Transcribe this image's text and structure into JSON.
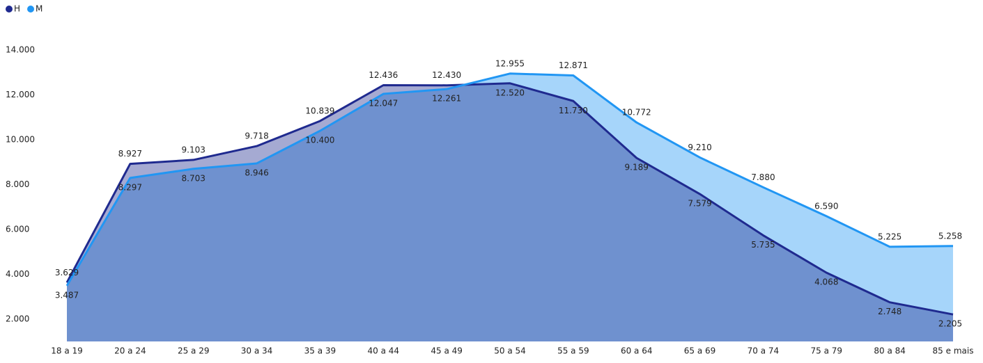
{
  "chart_data": {
    "type": "area",
    "categories": [
      "18 a 19",
      "20 a 24",
      "25 a 29",
      "30 a 34",
      "35 a 39",
      "40 a 44",
      "45 a 49",
      "50 a 54",
      "55 a 59",
      "60 a 64",
      "65 a 69",
      "70 a 74",
      "75 a 79",
      "80 a 84",
      "85 e mais"
    ],
    "series": [
      {
        "name": "H",
        "color": "#1f2a8f",
        "values": [
          3629,
          8927,
          9103,
          9718,
          10839,
          12436,
          12430,
          12520,
          11730,
          9189,
          7579,
          5735,
          4068,
          2748,
          2205
        ],
        "value_labels": [
          "3.629",
          "8.927",
          "9.103",
          "9.718",
          "10.839",
          "12.436",
          "12.430",
          "12.520",
          "11.730",
          "9.189",
          "7.579",
          "5.735",
          "4.068",
          "2.748",
          "2.205"
        ]
      },
      {
        "name": "M",
        "color": "#2196f3",
        "values": [
          3487,
          8297,
          8703,
          8946,
          10400,
          12047,
          12261,
          12955,
          12871,
          10772,
          9210,
          7880,
          6590,
          5225,
          5258
        ],
        "value_labels": [
          "3.487",
          "8.297",
          "8.703",
          "8.946",
          "10.400",
          "12.047",
          "12.261",
          "12.955",
          "12.871",
          "10.772",
          "9.210",
          "7.880",
          "6.590",
          "5.225",
          "5.258"
        ]
      }
    ],
    "ylim": [
      1000,
      14500
    ],
    "yticks": [
      {
        "value": 2000,
        "label": "2.000"
      },
      {
        "value": 4000,
        "label": "4.000"
      },
      {
        "value": 6000,
        "label": "6.000"
      },
      {
        "value": 8000,
        "label": "8.000"
      },
      {
        "value": 10000,
        "label": "10.000"
      },
      {
        "value": 12000,
        "label": "12.000"
      },
      {
        "value": 14000,
        "label": "14.000"
      }
    ],
    "legend": "top-left"
  }
}
